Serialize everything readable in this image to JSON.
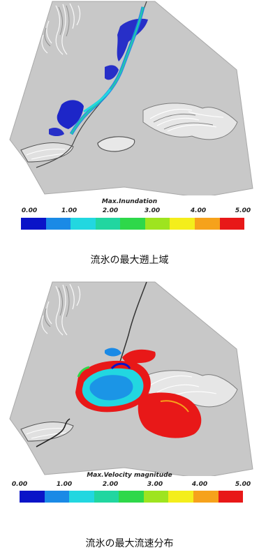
{
  "panels": [
    {
      "scale_title": "Max.Inundation",
      "ticks": [
        "0.00",
        "1.00",
        "2.00",
        "3.00",
        "4.00",
        "5.00"
      ],
      "caption": "流氷の最大遡上域"
    },
    {
      "scale_title": "Max.Velocity magnitude",
      "ticks": [
        "0.00",
        "1.00",
        "2.00",
        "3.00",
        "4.00",
        "5.00"
      ],
      "caption": "流氷の最大流速分布"
    }
  ],
  "colorscale": [
    "#0a14c8",
    "#1a8ae6",
    "#22d7e0",
    "#21d6a0",
    "#2ed84a",
    "#9ee41f",
    "#f4ee1b",
    "#f6a21b",
    "#e81818"
  ]
}
